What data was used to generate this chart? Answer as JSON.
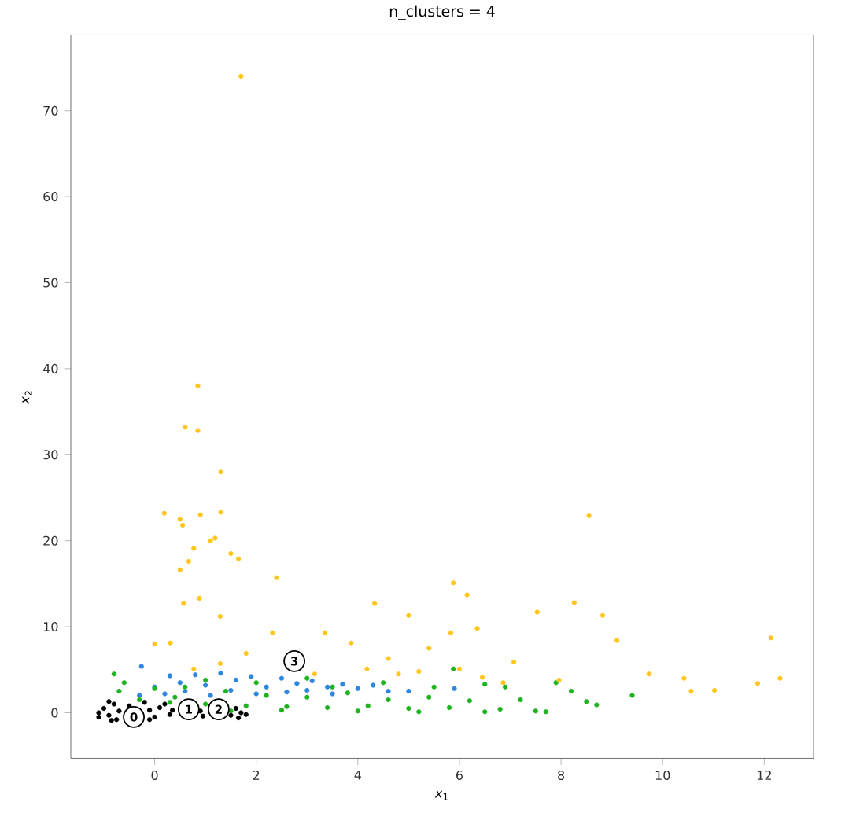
{
  "chart_data": {
    "type": "scatter",
    "title": "n_clusters = 4",
    "xlabel": "*x*$_{1}$",
    "ylabel": "*x*$_{2}$",
    "xlim": [
      -1.65,
      12.97
    ],
    "ylim": [
      -5.3,
      78.8
    ],
    "xticks": [
      0,
      2,
      4,
      6,
      8,
      10,
      12
    ],
    "yticks": [
      0,
      10,
      20,
      30,
      40,
      50,
      60,
      70
    ],
    "series": [
      {
        "color": "#000000",
        "x": [
          -1.1,
          -1.1,
          -1.0,
          -0.9,
          -0.8,
          -0.7,
          -0.85,
          -0.5,
          -0.1,
          -0.75,
          -0.2,
          -0.1,
          0,
          0.1,
          0.3,
          0.35,
          0.95,
          0.9,
          1.65,
          1.6,
          1.5,
          1.7,
          1.8,
          0.2,
          -0.9
        ],
        "values": [
          -0.5,
          0,
          0.5,
          -0.3,
          1.0,
          0.2,
          -0.9,
          0.8,
          -0.8,
          -0.8,
          1.2,
          0.3,
          -0.5,
          0.6,
          -0.2,
          0.3,
          -0.4,
          0.2,
          -0.6,
          0.5,
          -0.3,
          0,
          -0.2,
          1.0,
          1.3
        ]
      },
      {
        "color": "#2e86de",
        "x": [
          0,
          0.3,
          0.5,
          0.8,
          1.0,
          1.3,
          1.6,
          1.9,
          2.2,
          2.5,
          2.8,
          3.1,
          3.4,
          3.7,
          4.0,
          4.3,
          4.6,
          5.0,
          0.2,
          0.6,
          1.1,
          1.5,
          2.0,
          2.6,
          3.0,
          3.5,
          -0.3,
          -0.26,
          5.9
        ],
        "values": [
          3,
          4.3,
          3.5,
          4.4,
          3.2,
          4.6,
          3.8,
          4.2,
          3.0,
          4.0,
          3.4,
          3.7,
          3.0,
          3.3,
          2.8,
          3.2,
          2.5,
          2.5,
          2.2,
          2.5,
          2.0,
          2.6,
          2.2,
          2.4,
          2.6,
          2.2,
          2.0,
          5.4,
          2.8
        ]
      },
      {
        "color": "#1fb41f",
        "x": [
          -0.8,
          -0.6,
          -0.7,
          -0.3,
          0,
          0.3,
          0.6,
          1,
          1.4,
          1.8,
          2.2,
          2.6,
          3,
          3.4,
          3.8,
          4.2,
          4.6,
          5.0,
          5.4,
          5.8,
          6.2,
          6.5,
          6.8,
          6.9,
          7.2,
          7.5,
          7.7,
          7.9,
          8.2,
          8.5,
          8.7,
          9.4,
          5.88,
          3.0,
          2.0,
          1.0,
          4.5,
          5.5,
          3.5,
          0.4,
          2.5,
          1.5,
          4.0,
          5.2,
          6.5
        ],
        "values": [
          4.5,
          3.5,
          2.5,
          1.5,
          2.8,
          1.2,
          3.0,
          1.0,
          2.5,
          0.8,
          2.0,
          0.7,
          1.8,
          0.6,
          2.3,
          0.8,
          1.5,
          0.5,
          1.8,
          0.6,
          1.4,
          3.3,
          0.4,
          3.0,
          1.5,
          0.2,
          0.1,
          3.5,
          2.5,
          1.3,
          0.9,
          2.0,
          5.1,
          4.0,
          3.5,
          3.8,
          3.5,
          3.0,
          3.0,
          1.8,
          0.3,
          0.2,
          0.2,
          0.1,
          0.1
        ]
      },
      {
        "color": "#ffc61e",
        "x": [
          1.7,
          0.85,
          0.6,
          0.85,
          1.3,
          0.19,
          0.5,
          0.9,
          1.3,
          0.55,
          1.1,
          8.55,
          5.88,
          6.15,
          4.33,
          8.26,
          8.82,
          7.53,
          12.13,
          12.31,
          11.87,
          10.42,
          10.56,
          11.02,
          9.73,
          9.1,
          7.07,
          7.96,
          6.86,
          6.35,
          5.0,
          5.83,
          2.4,
          1.65,
          0.57,
          0.88,
          1.29,
          0.31,
          0.0,
          2.32,
          3.35,
          3.87,
          4.6,
          5.4,
          4.8,
          1.8,
          0.77,
          1.29,
          3.15,
          4.18,
          5.2,
          6.45,
          6.0,
          0.67,
          1.19,
          1.5,
          0.77,
          0.5
        ],
        "values": [
          74,
          38,
          33.2,
          32.8,
          28,
          23.2,
          22.5,
          23,
          23.3,
          21.8,
          20,
          22.9,
          15.1,
          13.7,
          12.7,
          12.8,
          11.3,
          11.7,
          8.7,
          4.0,
          3.4,
          4.0,
          2.5,
          2.6,
          4.5,
          8.4,
          5.9,
          3.8,
          3.5,
          9.8,
          11.3,
          9.3,
          15.7,
          17.9,
          12.7,
          13.3,
          11.2,
          8.1,
          8.0,
          9.3,
          9.3,
          8.1,
          6.3,
          7.5,
          4.5,
          6.9,
          5.1,
          5.7,
          4.5,
          5.1,
          4.8,
          4.1,
          5.1,
          17.6,
          20.3,
          18.5,
          19.1,
          16.6
        ]
      },
      {
        "color": "#ffffff",
        "x": [
          -0.41,
          0.67,
          1.26,
          2.75
        ],
        "values": [
          -0.5,
          0.4,
          0.4,
          6.0
        ]
      }
    ],
    "annotations": [
      {
        "text": "0",
        "x": -0.41,
        "y": -0.5
      },
      {
        "text": "1",
        "x": 0.67,
        "y": 0.4
      },
      {
        "text": "2",
        "x": 1.26,
        "y": 0.4
      },
      {
        "text": "3",
        "x": 2.75,
        "y": 6.0
      }
    ]
  }
}
